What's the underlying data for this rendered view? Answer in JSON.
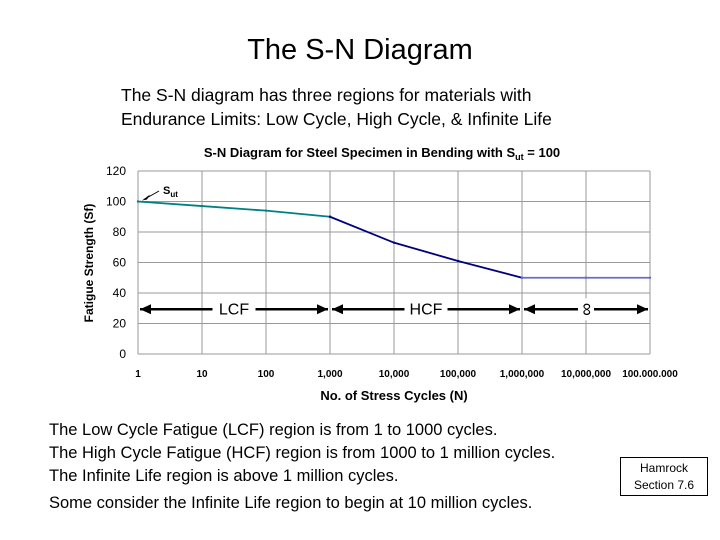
{
  "slide": {
    "title": "The S-N Diagram",
    "intro": [
      "The S-N diagram has three regions for materials with",
      "Endurance Limits: Low Cycle, High Cycle, & Infinite Life"
    ],
    "body": [
      "The Low Cycle Fatigue (LCF) region is from 1 to 1000 cycles.",
      "The High Cycle Fatigue (HCF) region is from 1000 to 1 million cycles.",
      "The Infinite Life region is above 1 million cycles."
    ],
    "note": "Some consider the Infinite Life region to begin at 10 million cycles.",
    "reference": [
      "Hamrock",
      "Section 7.6"
    ]
  },
  "chart_data": {
    "type": "line",
    "title_main": "S-N Diagram for Steel Specimen in Bending with S",
    "title_sub": "ut",
    "title_tail": " = 100",
    "xlabel": "No. of Stress Cycles  (N)",
    "ylabel": "Fatigue Strength  (Sf)",
    "xscale": "log",
    "x_ticks": [
      1,
      10,
      100,
      1000,
      10000,
      100000,
      1000000,
      10000000,
      100000000
    ],
    "x_tick_labels": [
      "1",
      "10",
      "100",
      "1,000",
      "10,000",
      "100,000",
      "1,000,000",
      "10,000,000",
      "100.000.000"
    ],
    "y_ticks": [
      0,
      20,
      40,
      60,
      80,
      100,
      120
    ],
    "ylim": [
      0,
      120
    ],
    "grid": true,
    "series": [
      {
        "segment": "LCF",
        "color": "#008080",
        "x": [
          1,
          10,
          100,
          1000
        ],
        "y": [
          100,
          97,
          94,
          90
        ]
      },
      {
        "segment": "HCF",
        "color": "#000080",
        "x": [
          1000,
          10000,
          100000,
          1000000
        ],
        "y": [
          90,
          73,
          61,
          50
        ]
      },
      {
        "segment": "Infinite",
        "color": "#6a6acd",
        "x": [
          1000000,
          10000000,
          100000000
        ],
        "y": [
          50,
          50,
          50
        ]
      }
    ],
    "annotations": {
      "sut_label_main": "S",
      "sut_label_sub": "ut",
      "regions": [
        {
          "label": "LCF",
          "from": 1,
          "to": 1000
        },
        {
          "label": "HCF",
          "from": 1000,
          "to": 1000000
        },
        {
          "label": "∞",
          "from": 1000000,
          "to": 100000000
        }
      ],
      "arrow_level": 28
    }
  }
}
